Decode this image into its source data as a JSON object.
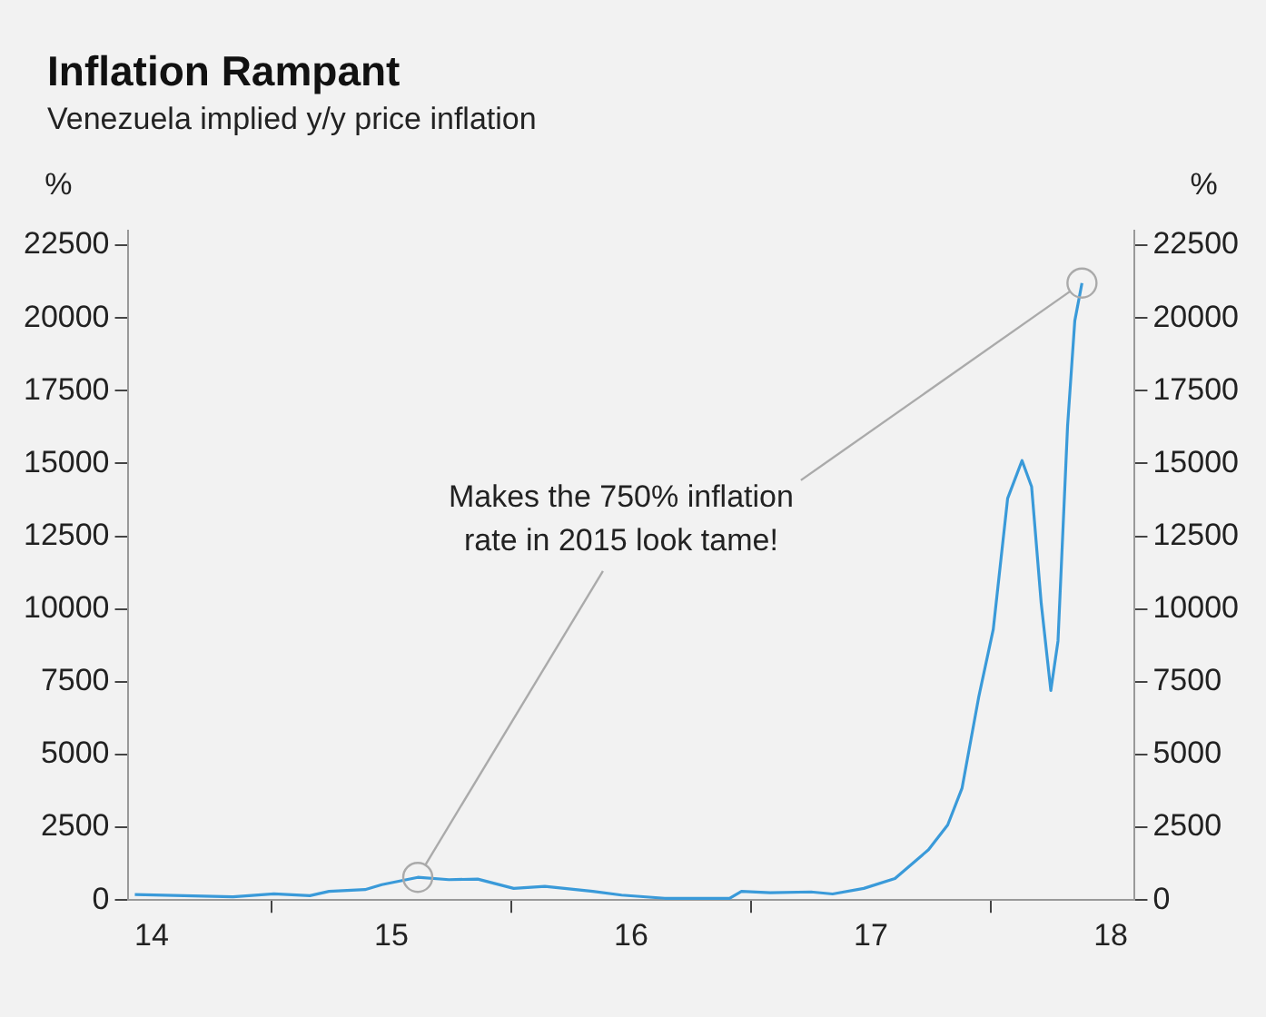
{
  "chart_data": {
    "type": "line",
    "title": "Inflation Rampant",
    "subtitle": "Venezuela implied y/y price inflation",
    "ylabel": "%",
    "y2label": "%",
    "x": [
      13.93,
      14.34,
      14.51,
      14.66,
      14.74,
      14.89,
      14.96,
      15.11,
      15.24,
      15.36,
      15.51,
      15.64,
      15.84,
      15.96,
      16.14,
      16.41,
      16.46,
      16.58,
      16.75,
      16.84,
      16.97,
      17.1,
      17.24,
      17.32,
      17.38,
      17.45,
      17.51,
      17.57,
      17.63,
      17.67,
      17.71,
      17.75,
      17.78,
      17.82,
      17.85,
      17.88
    ],
    "series": [
      {
        "color": "#3a9ad9",
        "values": [
          190,
          110,
          210,
          150,
          300,
          360,
          530,
          780,
          700,
          720,
          400,
          470,
          300,
          170,
          60,
          60,
          300,
          250,
          280,
          210,
          400,
          740,
          1730,
          2580,
          3850,
          7000,
          9300,
          13800,
          15100,
          14200,
          10200,
          7200,
          8900,
          16300,
          19900,
          21200
        ]
      }
    ],
    "xlim": [
      13.9,
      18.1
    ],
    "xticks": [
      14,
      {
        "value": 14.5,
        "label": null
      },
      15,
      {
        "value": 15.5,
        "label": null
      },
      16,
      {
        "value": 16.5,
        "label": null
      },
      17,
      {
        "value": 17.5,
        "label": null
      },
      18
    ],
    "ylim": [
      0,
      23000
    ],
    "yticks": [
      0,
      2500,
      5000,
      7500,
      10000,
      12500,
      15000,
      17500,
      20000,
      22500
    ],
    "y2lim": [
      0,
      23000
    ],
    "y2ticks": [
      0,
      2500,
      5000,
      7500,
      10000,
      12500,
      15000,
      17500,
      20000,
      22500
    ],
    "annotations": [
      {
        "text": "Makes the 750% inflation",
        "x": 17.88,
        "y": 21200
      },
      {
        "text": "rate in 2015 look tame!",
        "x": 15.11,
        "y": 780
      }
    ],
    "grid": false,
    "legend": false,
    "marker": "none",
    "line_style": "solid"
  }
}
